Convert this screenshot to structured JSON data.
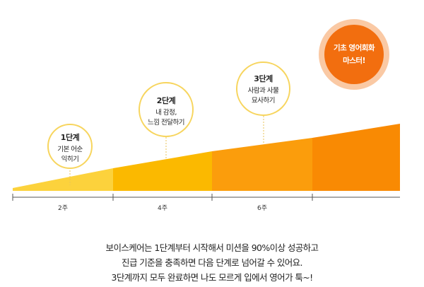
{
  "stages": [
    {
      "title": "1단계",
      "desc": "기본 어순\n익히기"
    },
    {
      "title": "2단계",
      "desc": "내 감정,\n느낌  전달하기"
    },
    {
      "title": "3단계",
      "desc": "사람과 사물\n묘사하기"
    }
  ],
  "goal": {
    "text": "기초 영어회화\n마스터!"
  },
  "weeks": [
    "2주",
    "4주",
    "6주"
  ],
  "description": [
    "보이스케어는 1단계부터 시작해서 미션을 90%이상 성공하고",
    "진급 기준을 충족하면 다음 단계로 넘어갈 수 있어요.",
    "3단계까지 모두 완료하면 나도 모르게 입에서 영어가 툭~!"
  ],
  "colors": {
    "segment1": "#fcd23c",
    "segment2": "#fbb900",
    "segment3": "#fb9d0c",
    "segment4": "#f98a03",
    "circle_border": "#f7d55e",
    "goal_outer": "#fac9a4",
    "goal_inner": "#f26e0f",
    "connector": "#e8c35a"
  }
}
